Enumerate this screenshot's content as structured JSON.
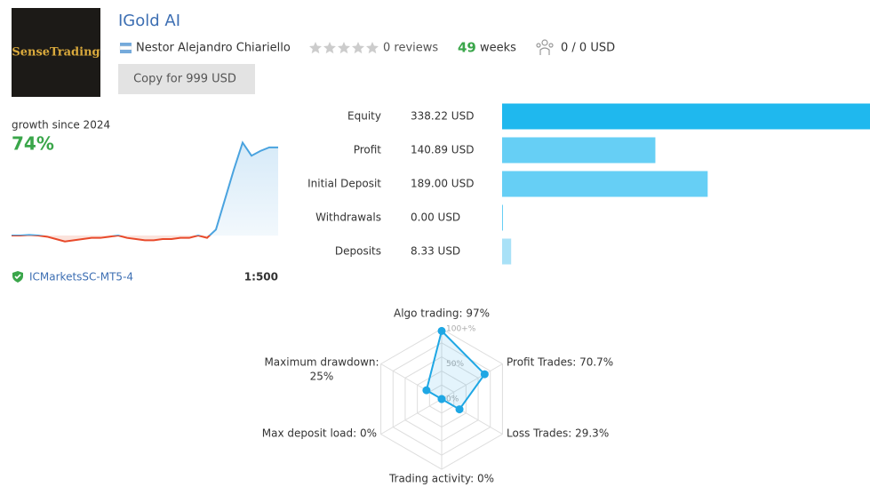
{
  "header": {
    "title": "IGold AI",
    "logo_text": "SenseTrading",
    "author": "Nestor Alejandro Chiariello",
    "reviews": "0 reviews",
    "weeks_value": "49",
    "weeks_label": "weeks",
    "subscribers": "0 / 0 USD",
    "copy_button": "Copy for 999 USD"
  },
  "growth": {
    "label": "growth since 2024",
    "value": "74%",
    "broker": "ICMarketsSC-MT5-4",
    "leverage": "1:500",
    "curve": [
      0,
      0,
      0.5,
      0,
      -1,
      -3,
      -5,
      -4,
      -3,
      -2,
      -2,
      -1,
      0,
      -2,
      -3,
      -4,
      -4,
      -3,
      -3,
      -2,
      -2,
      0,
      -2,
      5,
      30,
      55,
      78,
      67,
      71,
      74,
      74
    ]
  },
  "balance": {
    "categories": [
      "Equity",
      "Profit",
      "Initial Deposit",
      "Withdrawals",
      "Deposits"
    ],
    "values": [
      338.22,
      140.89,
      189.0,
      0.0,
      8.33
    ],
    "value_labels": [
      "338.22 USD",
      "140.89 USD",
      "189.00 USD",
      "0.00 USD",
      "8.33 USD"
    ],
    "colors": [
      "#1fb8ee",
      "#66cff5",
      "#66cff5",
      "#66cff5",
      "#a9e1f7"
    ]
  },
  "radar": {
    "axes": [
      {
        "label": [
          "Algo trading: 97%"
        ],
        "value": 97
      },
      {
        "label": [
          "Profit Trades: 70.7%"
        ],
        "value": 70.7
      },
      {
        "label": [
          "Loss Trades: 29.3%"
        ],
        "value": 29.3
      },
      {
        "label": [
          "Trading activity: 0%"
        ],
        "value": 0
      },
      {
        "label": [
          "Max deposit load: 0%"
        ],
        "value": 0
      },
      {
        "label": [
          "Maximum drawdown:",
          "25%"
        ],
        "value": 25
      }
    ],
    "rings": [
      {
        "value": 100,
        "label": "100+%"
      },
      {
        "value": 50,
        "label": "50%"
      },
      {
        "value": 0,
        "label": "0%"
      }
    ],
    "color": "#1ea7e4"
  }
}
